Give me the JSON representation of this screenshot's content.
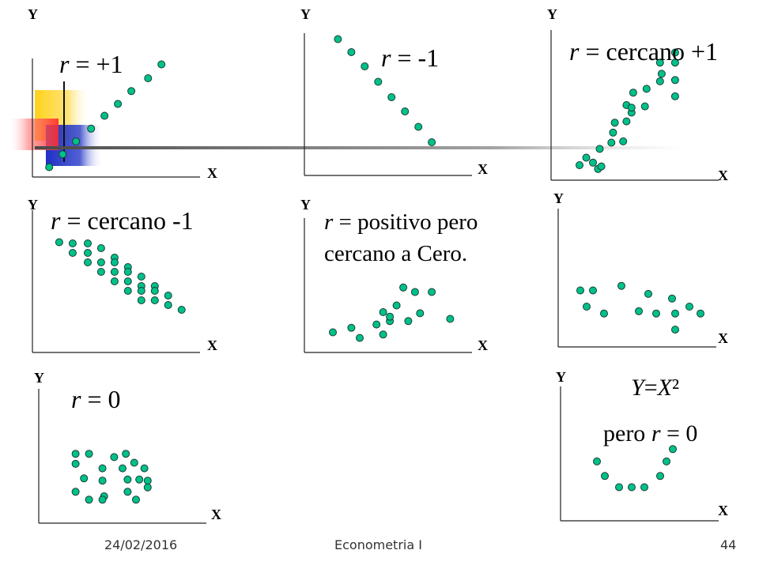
{
  "colors": {
    "point_fill": "#00c08a",
    "point_stroke": "#1a3d33",
    "axis": "#222222",
    "text": "#000000"
  },
  "footer": {
    "date": "24/02/2016",
    "course": "Econometria I",
    "page": "44"
  },
  "chart_data": [
    {
      "type": "scatter",
      "id": "panel-1",
      "xlabel": "X",
      "ylabel": "Y",
      "annotation": "r = +1",
      "points": [
        [
          1.0,
          1.0
        ],
        [
          1.8,
          2.3
        ],
        [
          2.6,
          3.6
        ],
        [
          3.5,
          4.9
        ],
        [
          4.3,
          6.2
        ],
        [
          5.1,
          7.4
        ],
        [
          5.9,
          8.7
        ],
        [
          6.9,
          10.0
        ],
        [
          7.7,
          11.4
        ]
      ]
    },
    {
      "type": "scatter",
      "id": "panel-2",
      "xlabel": "X",
      "ylabel": "Y",
      "annotation": "r = -1",
      "points": [
        [
          2.0,
          11.5
        ],
        [
          2.8,
          10.4
        ],
        [
          3.6,
          9.2
        ],
        [
          4.4,
          7.9
        ],
        [
          5.2,
          6.6
        ],
        [
          6.0,
          5.4
        ],
        [
          6.8,
          4.1
        ],
        [
          7.6,
          2.8
        ]
      ]
    },
    {
      "type": "scatter",
      "id": "panel-3",
      "xlabel": "X",
      "ylabel": "Y",
      "annotation": "r = cercano +1",
      "points": [
        [
          1.7,
          1.2
        ],
        [
          2.1,
          1.8
        ],
        [
          2.5,
          1.4
        ],
        [
          2.8,
          0.9
        ],
        [
          3.0,
          1.1
        ],
        [
          2.9,
          2.5
        ],
        [
          3.6,
          3.0
        ],
        [
          3.7,
          3.8
        ],
        [
          3.8,
          4.6
        ],
        [
          4.3,
          3.1
        ],
        [
          4.5,
          4.7
        ],
        [
          4.8,
          5.4
        ],
        [
          4.5,
          6.0
        ],
        [
          4.8,
          5.8
        ],
        [
          4.9,
          7.0
        ],
        [
          5.6,
          5.9
        ],
        [
          5.7,
          7.3
        ],
        [
          6.5,
          7.9
        ],
        [
          6.6,
          8.5
        ],
        [
          6.5,
          9.4
        ],
        [
          7.4,
          6.7
        ],
        [
          7.4,
          8.0
        ],
        [
          7.4,
          9.4
        ],
        [
          7.4,
          10.2
        ]
      ]
    },
    {
      "type": "scatter",
      "id": "panel-4",
      "xlabel": "X",
      "ylabel": "Y",
      "annotation": "r = cercano -1",
      "points": [
        [
          1.6,
          9.3
        ],
        [
          2.4,
          9.2
        ],
        [
          3.3,
          9.2
        ],
        [
          4.1,
          8.8
        ],
        [
          2.4,
          8.4
        ],
        [
          3.3,
          8.4
        ],
        [
          4.9,
          8.0
        ],
        [
          3.3,
          7.6
        ],
        [
          4.1,
          7.6
        ],
        [
          4.9,
          7.6
        ],
        [
          5.7,
          7.2
        ],
        [
          4.1,
          6.8
        ],
        [
          4.9,
          6.8
        ],
        [
          5.7,
          6.8
        ],
        [
          6.5,
          6.4
        ],
        [
          4.9,
          6.0
        ],
        [
          5.7,
          6.0
        ],
        [
          6.5,
          5.6
        ],
        [
          7.3,
          5.6
        ],
        [
          5.7,
          5.2
        ],
        [
          6.5,
          5.2
        ],
        [
          7.3,
          5.2
        ],
        [
          8.1,
          4.8
        ],
        [
          6.5,
          4.4
        ],
        [
          7.3,
          4.4
        ],
        [
          8.1,
          4.0
        ],
        [
          8.9,
          3.6
        ]
      ]
    },
    {
      "type": "scatter",
      "id": "panel-5",
      "xlabel": "X",
      "ylabel": "Y",
      "annotation_lines": [
        "r = positivo pero",
        "cercano a Cero."
      ],
      "points": [
        [
          1.7,
          1.8
        ],
        [
          2.8,
          2.2
        ],
        [
          3.3,
          1.3
        ],
        [
          4.3,
          2.5
        ],
        [
          4.7,
          1.6
        ],
        [
          4.7,
          3.6
        ],
        [
          5.1,
          2.8
        ],
        [
          5.1,
          3.2
        ],
        [
          5.5,
          4.2
        ],
        [
          5.9,
          5.8
        ],
        [
          6.2,
          2.8
        ],
        [
          6.6,
          5.4
        ],
        [
          6.9,
          3.5
        ],
        [
          7.6,
          5.4
        ],
        [
          8.7,
          3.0
        ]
      ]
    },
    {
      "type": "scatter",
      "id": "panel-6",
      "xlabel": "X",
      "ylabel": "Y",
      "points": [
        [
          1.4,
          4.9
        ],
        [
          2.2,
          4.9
        ],
        [
          4.0,
          5.3
        ],
        [
          1.8,
          3.5
        ],
        [
          2.9,
          2.9
        ],
        [
          5.7,
          4.6
        ],
        [
          5.1,
          3.1
        ],
        [
          6.2,
          2.9
        ],
        [
          7.2,
          4.2
        ],
        [
          7.4,
          2.9
        ],
        [
          7.4,
          1.5
        ],
        [
          8.3,
          3.5
        ],
        [
          9.0,
          2.9
        ]
      ]
    },
    {
      "type": "scatter",
      "id": "panel-7",
      "xlabel": "X",
      "ylabel": "Y",
      "annotation": "r = 0",
      "points": [
        [
          2.2,
          6.2
        ],
        [
          3.0,
          6.2
        ],
        [
          4.5,
          5.9
        ],
        [
          5.2,
          6.2
        ],
        [
          5.7,
          5.4
        ],
        [
          2.2,
          5.3
        ],
        [
          3.8,
          4.9
        ],
        [
          5.0,
          4.9
        ],
        [
          6.3,
          4.9
        ],
        [
          2.7,
          4.0
        ],
        [
          3.8,
          3.8
        ],
        [
          5.3,
          3.9
        ],
        [
          6.0,
          3.9
        ],
        [
          6.5,
          3.8
        ],
        [
          6.5,
          3.2
        ],
        [
          2.2,
          2.8
        ],
        [
          3.9,
          2.4
        ],
        [
          5.3,
          2.8
        ],
        [
          3.0,
          2.1
        ],
        [
          3.8,
          2.1
        ],
        [
          5.8,
          2.1
        ]
      ]
    },
    {
      "type": "scatter",
      "id": "panel-8",
      "xlabel": "X",
      "ylabel": "Y",
      "annotation_lines": [
        "Y=X²",
        "pero r = 0"
      ],
      "points": [
        [
          2.3,
          5.3
        ],
        [
          2.8,
          4.0
        ],
        [
          3.7,
          3.0
        ],
        [
          4.5,
          3.0
        ],
        [
          5.3,
          3.0
        ],
        [
          6.3,
          4.0
        ],
        [
          6.7,
          5.3
        ],
        [
          7.1,
          6.4
        ]
      ]
    }
  ]
}
